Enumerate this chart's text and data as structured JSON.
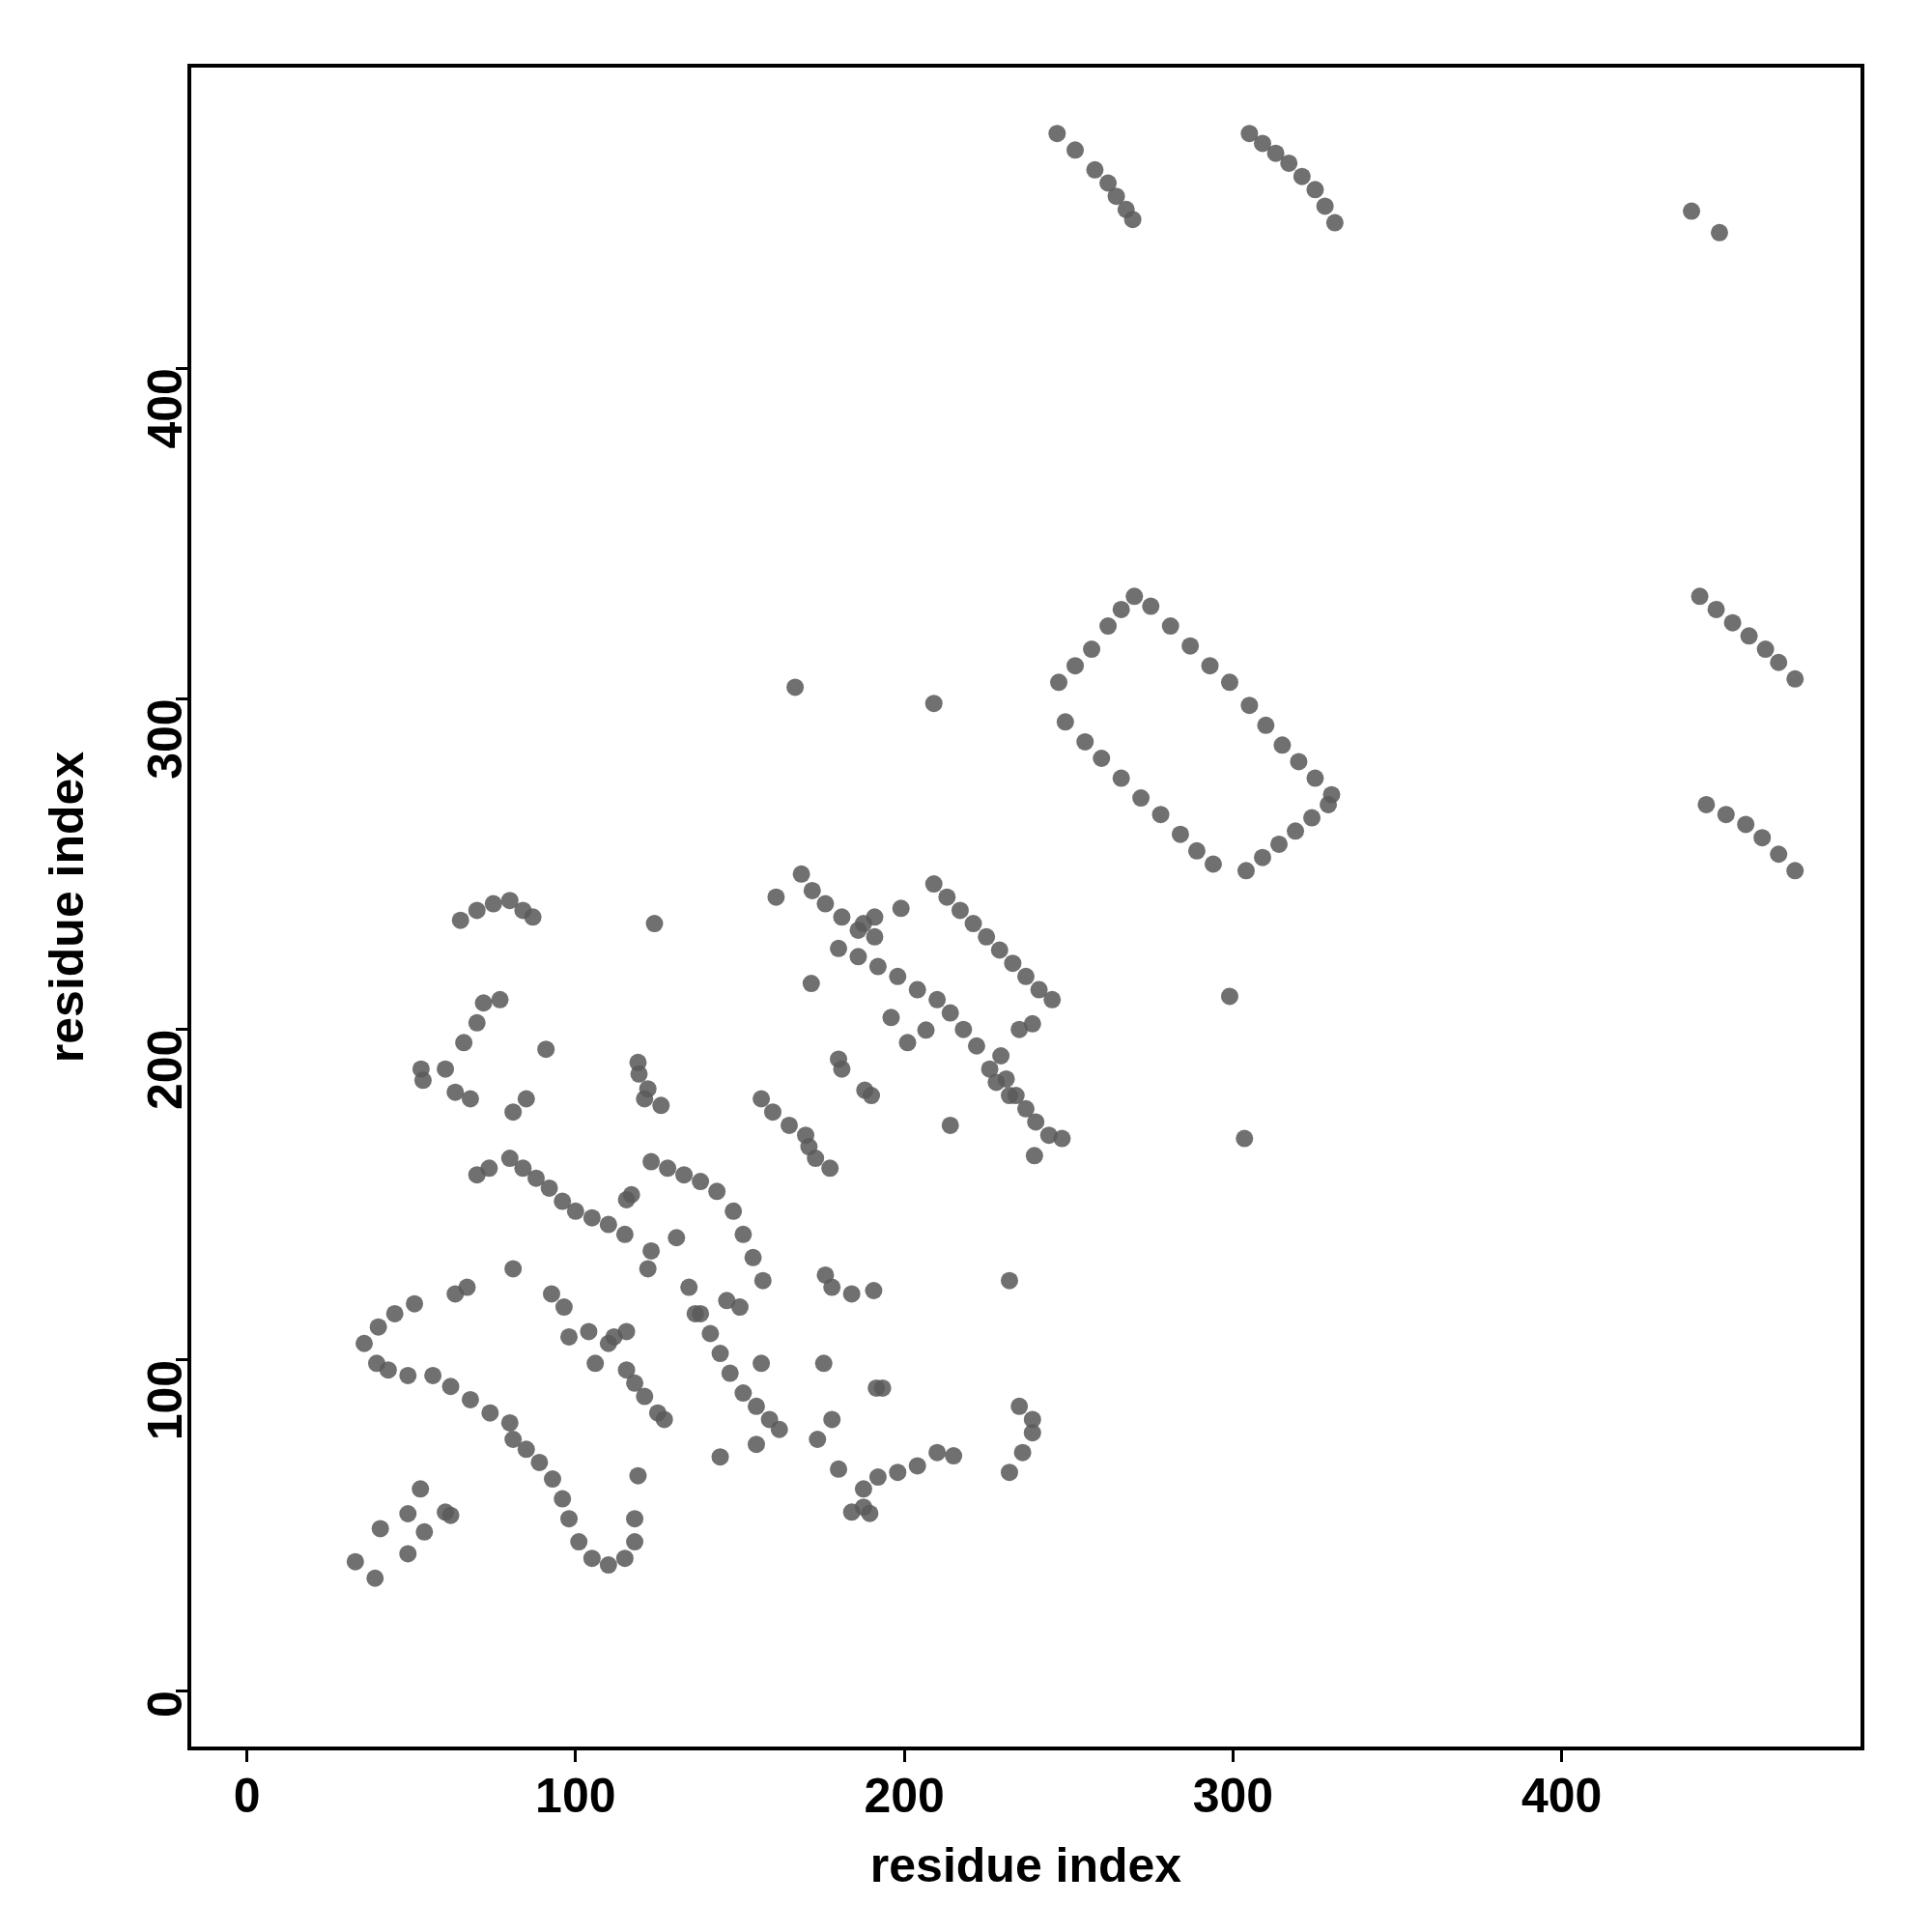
{
  "chart_data": {
    "type": "scatter",
    "xlabel": "residue index",
    "ylabel": "residue index",
    "xlim": [
      -17.5,
      491.5
    ],
    "ylim": [
      -17.5,
      491.5
    ],
    "xticks": [
      0,
      100,
      200,
      300,
      400
    ],
    "yticks": [
      0,
      100,
      200,
      300,
      400
    ],
    "grid": false,
    "legend": false,
    "marker": "circle",
    "series": [
      {
        "color": "#5a5a5a",
        "x": [
          246.5,
          252,
          258,
          262,
          264.5,
          267.5,
          269.5,
          305,
          309,
          313,
          317,
          321,
          325,
          328,
          331,
          439.5,
          448,
          442,
          447,
          452,
          457,
          462,
          466,
          471,
          444,
          450,
          456,
          461,
          466,
          471,
          247,
          252,
          257,
          262,
          266,
          270,
          275,
          281,
          287,
          293,
          299,
          305,
          310,
          315,
          320,
          325,
          330,
          249,
          255,
          260,
          266,
          272,
          278,
          284,
          289,
          294,
          304,
          309,
          314,
          319,
          324,
          329,
          166.8,
          209,
          299,
          303.5,
          65,
          70,
          75,
          80,
          84,
          87,
          60.4,
          66,
          70,
          72,
          77,
          53,
          53.6,
          63.4,
          68,
          85,
          81,
          70,
          73.7,
          91,
          80,
          84,
          88,
          92,
          96,
          100,
          105,
          110,
          115,
          115.5,
          117,
          119,
          121,
          119.3,
          122,
          126,
          124,
          123,
          128,
          133,
          138,
          143,
          148,
          151,
          154,
          157,
          130.7,
          134.5,
          123,
          122,
          136.4,
          146,
          150,
          138,
          141,
          144,
          147,
          151,
          155,
          159,
          162,
          144,
          155,
          156.5,
          35.7,
          40,
          45,
          51,
          39.5,
          43,
          49,
          56.6,
          62,
          68,
          74,
          80,
          81,
          85,
          89,
          93,
          96,
          98,
          101,
          105,
          110,
          115,
          118,
          118,
          63.4,
          67,
          81,
          92.7,
          96.5,
          98,
          104,
          106,
          110,
          111.7,
          115.5,
          115.5,
          118,
          121,
          125,
          127,
          119,
          33,
          39,
          40.6,
          49,
          49,
          52.8,
          54,
          60.4,
          62,
          168.7,
          172,
          176,
          181,
          186,
          191,
          161,
          171.7,
          180,
          186,
          192,
          198,
          204,
          210,
          214,
          218,
          222,
          226,
          228,
          232,
          187.6,
          191,
          199,
          196,
          201,
          206.6,
          209,
          213,
          217,
          221,
          225,
          229,
          233,
          237,
          241,
          245,
          229.4,
          231,
          234,
          237,
          240,
          244,
          248,
          235,
          239,
          239.6,
          214,
          188,
          190,
          180,
          181,
          156.5,
          160,
          165,
          170,
          171,
          173,
          177.4,
          176,
          178,
          184,
          190.7,
          175.5,
          178,
          173.6,
          180,
          184,
          187.6,
          189.5,
          187.6,
          192,
          198,
          204,
          210,
          215,
          191.5,
          193.4,
          232,
          235,
          239,
          239,
          236,
          232
        ],
        "values": [
          471,
          466,
          460,
          456,
          452,
          448,
          445,
          471,
          468,
          465,
          462,
          458,
          454,
          449,
          444,
          447.5,
          441,
          331,
          327,
          323,
          319,
          315,
          311,
          306,
          268,
          265,
          262,
          258,
          253,
          248,
          305,
          310,
          315,
          322,
          327,
          331,
          328,
          322,
          316,
          310,
          305,
          298,
          292,
          286,
          281,
          276,
          271,
          293,
          287,
          282,
          276,
          270,
          265,
          259,
          254,
          250,
          248,
          252,
          256,
          260,
          264,
          268,
          303.5,
          298.6,
          210,
          167,
          233,
          236,
          238,
          239,
          236,
          234,
          188,
          196,
          202,
          208,
          209,
          188,
          184.6,
          181,
          179,
          179,
          175,
          156,
          158,
          194,
          161,
          158,
          155,
          152,
          148,
          145,
          143,
          141,
          138,
          148.5,
          150,
          190,
          179,
          186.5,
          182,
          177,
          232,
          160,
          158,
          156,
          154,
          151,
          145,
          138,
          131,
          124,
          137,
          122,
          133,
          127.6,
          114,
          118,
          116,
          114,
          108,
          102,
          96,
          90,
          86,
          82,
          79,
          70.7,
          74.5,
          99,
          105,
          110,
          114,
          117,
          99,
          97,
          95.3,
          95.3,
          92,
          88,
          84,
          81,
          76,
          73,
          69,
          64,
          58,
          52,
          45,
          40,
          38,
          40,
          45,
          52,
          120,
          122,
          127.6,
          120,
          116,
          107,
          108.6,
          99,
          105,
          107,
          108.6,
          97,
          93,
          89,
          84,
          82,
          65,
          39,
          34,
          49,
          41.4,
          53.5,
          61,
          48,
          54,
          53,
          247,
          242,
          238,
          234,
          230,
          228,
          240,
          213.9,
          224.5,
          222,
          219,
          216,
          212,
          209,
          205,
          200,
          195,
          188,
          184,
          180,
          232,
          234,
          236.6,
          203.6,
          196,
          199.8,
          244,
          240,
          236,
          232,
          228,
          224,
          220,
          216,
          212,
          209,
          192,
          185,
          180,
          176,
          172,
          168,
          167,
          200,
          201.7,
          161.8,
          171,
          181.6,
          180,
          191,
          188,
          179,
          175,
          171,
          168,
          164.5,
          161,
          158,
          125.7,
          122,
          120,
          121,
          99,
          82,
          76,
          67,
          54,
          55.5,
          53.6,
          61,
          64.6,
          66,
          68,
          72,
          71,
          91.5,
          91.5,
          124,
          86,
          82,
          78,
          72,
          66
        ]
      }
    ]
  }
}
